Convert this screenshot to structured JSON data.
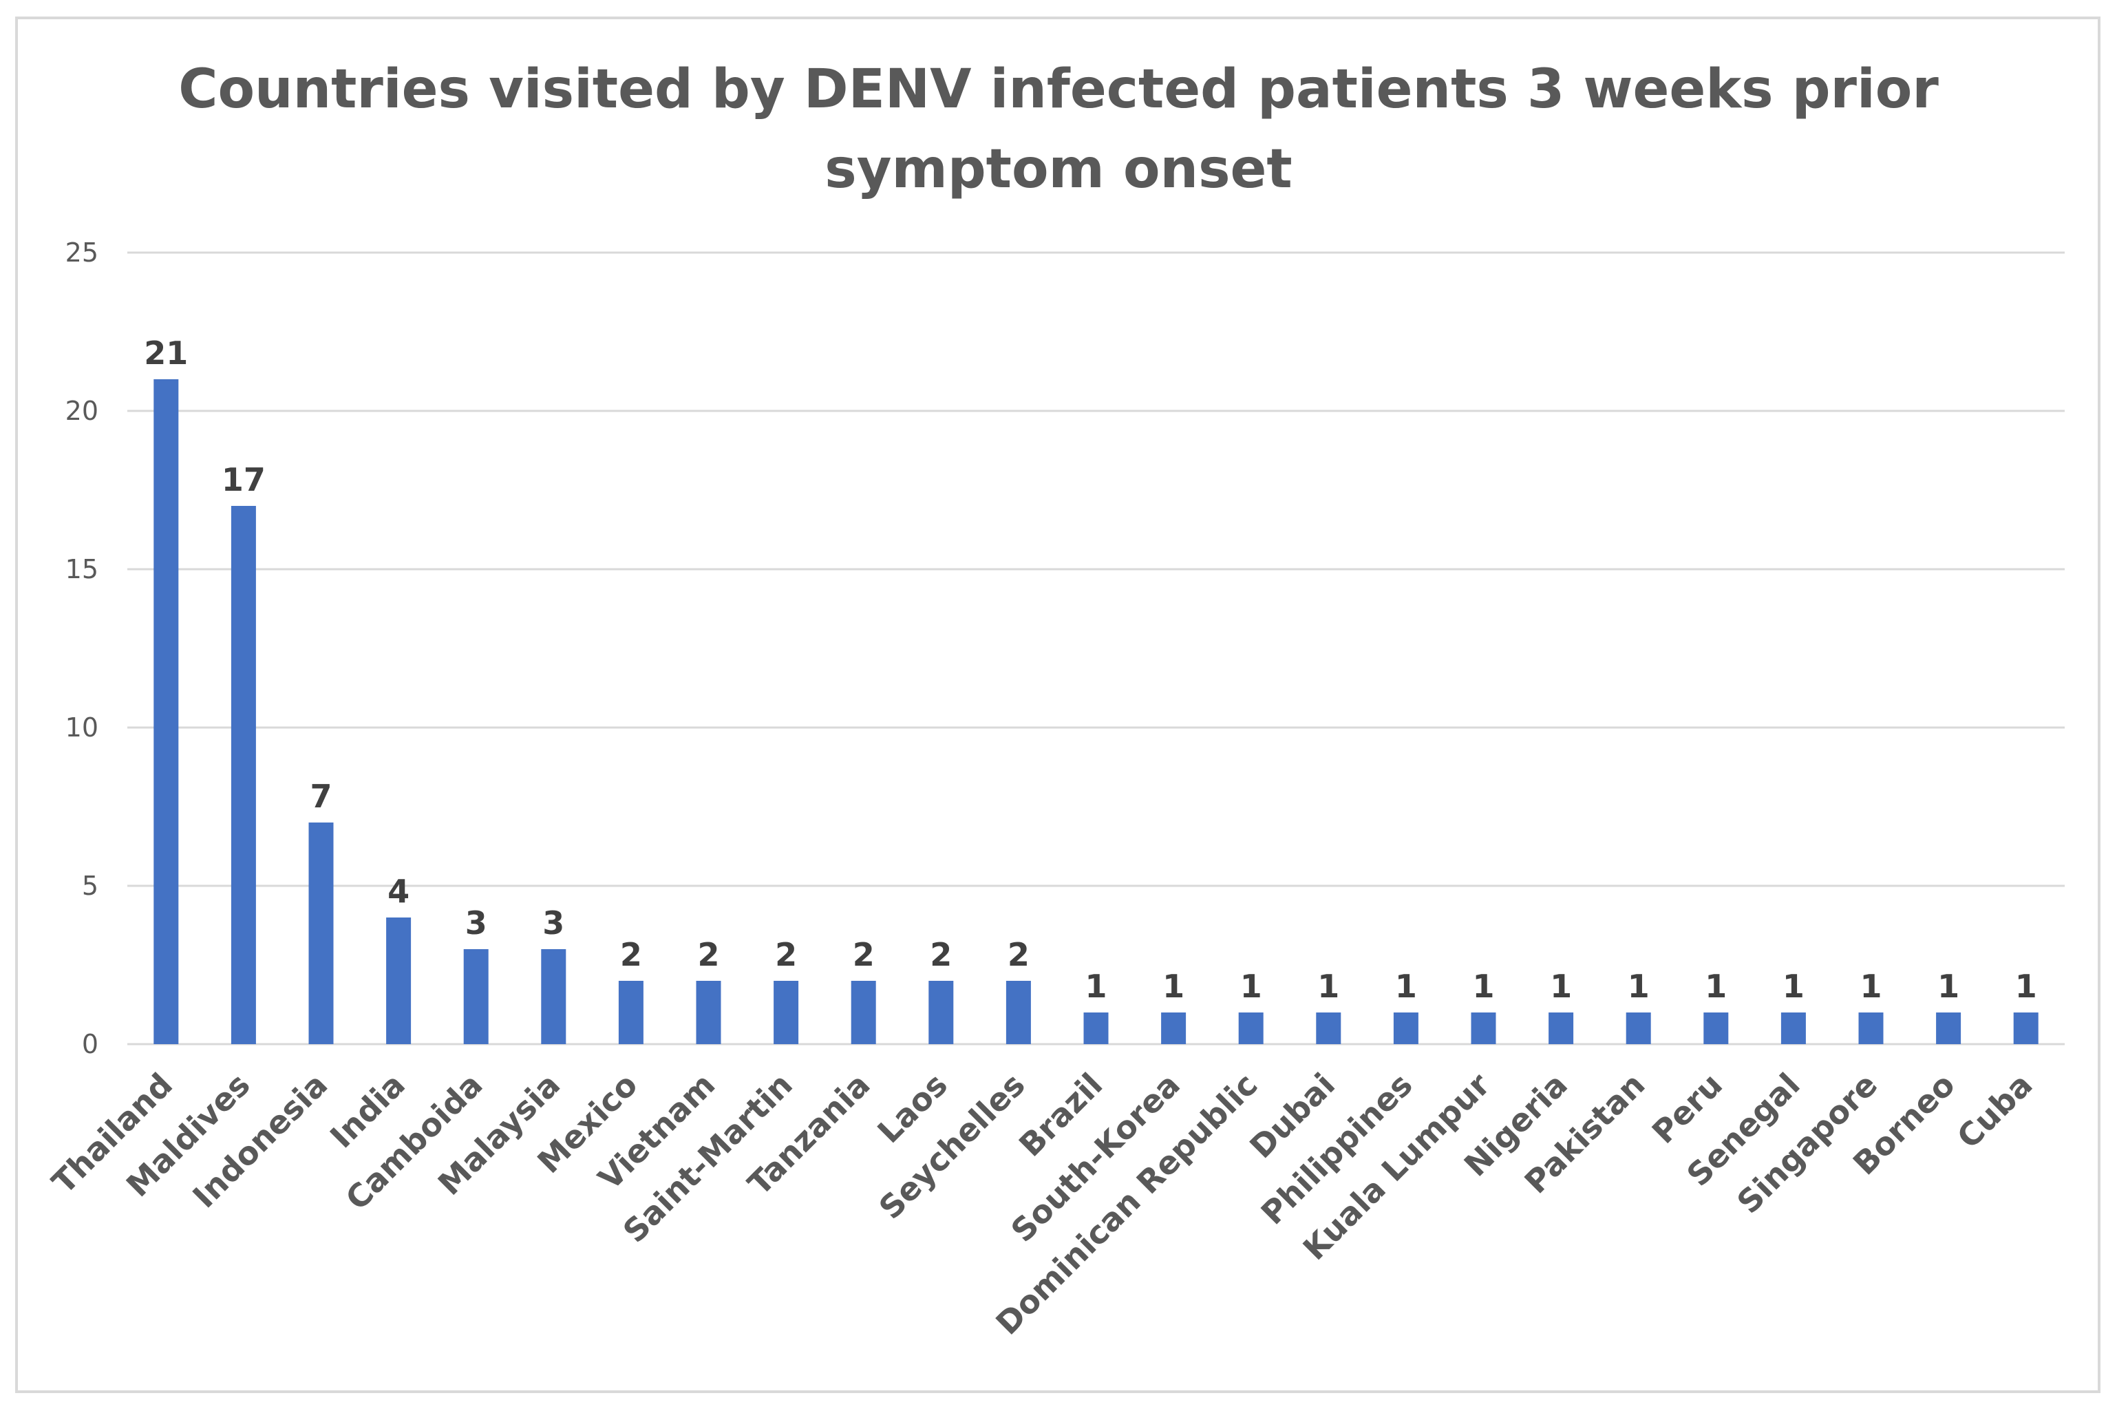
{
  "chart_data": {
    "type": "bar",
    "title": "Countries visited by DENV infected patients 3 weeks prior symptom onset",
    "title_lines": [
      "Countries visited by DENV infected patients 3 weeks prior",
      "symptom onset"
    ],
    "xlabel": "",
    "ylabel": "",
    "ylim": [
      0,
      25
    ],
    "yticks": [
      0,
      5,
      10,
      15,
      20,
      25
    ],
    "grid": true,
    "legend": "none",
    "bar_color": "#4472c4",
    "categories": [
      "Thailand",
      "Maldives",
      "Indonesia",
      "India",
      "Camboida",
      "Malaysia",
      "Mexico",
      "Vietnam",
      "Saint-Martin",
      "Tanzania",
      "Laos",
      "Seychelles",
      "Brazil",
      "South-Korea",
      "Dominican Republic",
      "Dubai",
      "Philippines",
      "Kuala Lumpur",
      "Nigeria",
      "Pakistan",
      "Peru",
      "Senegal",
      "Singapore",
      "Borneo",
      "Cuba"
    ],
    "values": [
      21,
      17,
      7,
      4,
      3,
      3,
      2,
      2,
      2,
      2,
      2,
      2,
      1,
      1,
      1,
      1,
      1,
      1,
      1,
      1,
      1,
      1,
      1,
      1,
      1
    ]
  }
}
